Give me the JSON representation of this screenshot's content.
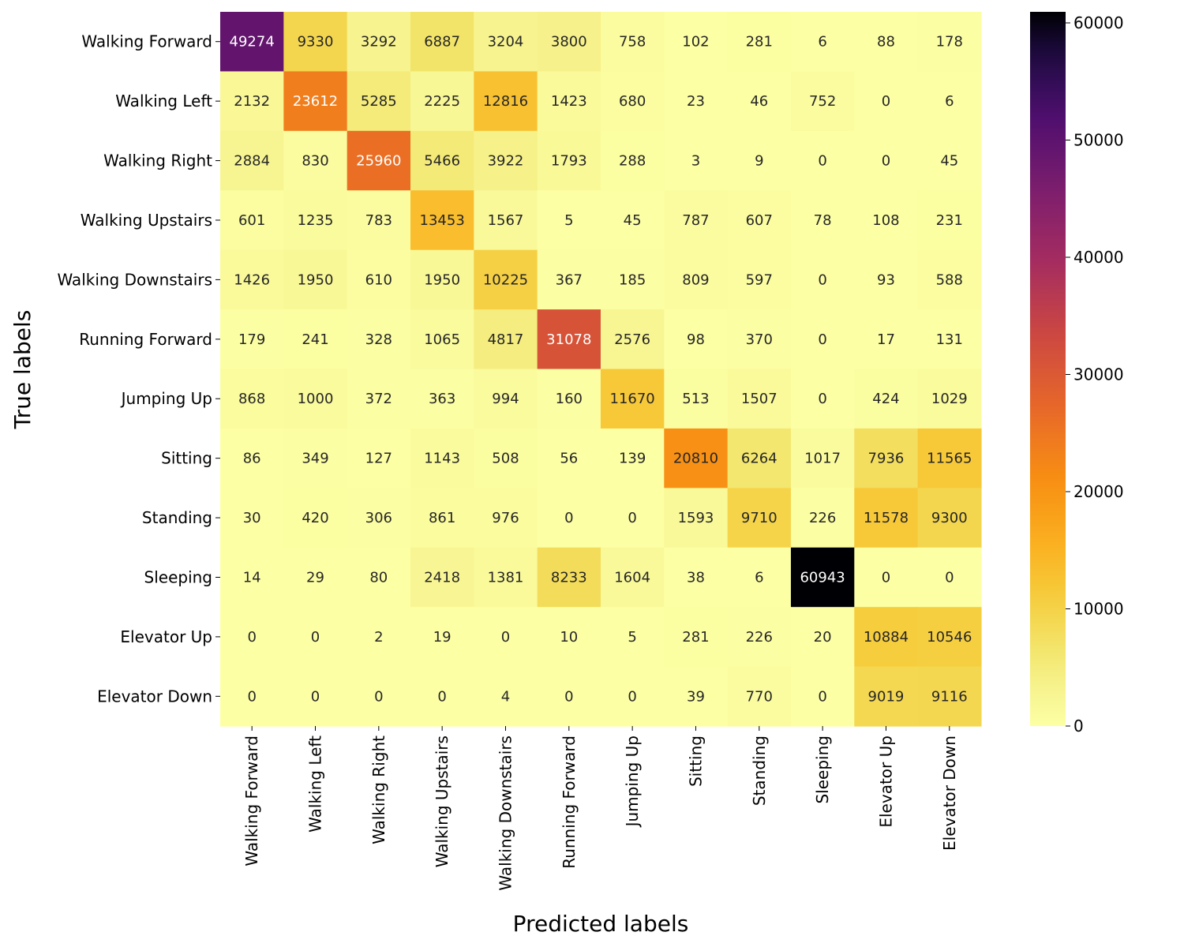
{
  "chart_data": {
    "type": "heatmap",
    "title": "",
    "xlabel": "Predicted labels",
    "ylabel": "True labels",
    "colormap": "inferno_r",
    "x_categories": [
      "Walking Forward",
      "Walking Left",
      "Walking Right",
      "Walking Upstairs",
      "Walking Downstairs",
      "Running Forward",
      "Jumping Up",
      "Sitting",
      "Standing",
      "Sleeping",
      "Elevator Up",
      "Elevator Down"
    ],
    "y_categories": [
      "Walking Forward",
      "Walking Left",
      "Walking Right",
      "Walking Upstairs",
      "Walking Downstairs",
      "Running Forward",
      "Jumping Up",
      "Sitting",
      "Standing",
      "Sleeping",
      "Elevator Up",
      "Elevator Down"
    ],
    "values": [
      [
        49274,
        9330,
        3292,
        6887,
        3204,
        3800,
        758,
        102,
        281,
        6,
        88,
        178
      ],
      [
        2132,
        23612,
        5285,
        2225,
        12816,
        1423,
        680,
        23,
        46,
        752,
        0,
        6
      ],
      [
        2884,
        830,
        25960,
        5466,
        3922,
        1793,
        288,
        3,
        9,
        0,
        0,
        45
      ],
      [
        601,
        1235,
        783,
        13453,
        1567,
        5,
        45,
        787,
        607,
        78,
        108,
        231
      ],
      [
        1426,
        1950,
        610,
        1950,
        10225,
        367,
        185,
        809,
        597,
        0,
        93,
        588
      ],
      [
        179,
        241,
        328,
        1065,
        4817,
        31078,
        2576,
        98,
        370,
        0,
        17,
        131
      ],
      [
        868,
        1000,
        372,
        363,
        994,
        160,
        11670,
        513,
        1507,
        0,
        424,
        1029
      ],
      [
        86,
        349,
        127,
        1143,
        508,
        56,
        139,
        20810,
        6264,
        1017,
        7936,
        11565
      ],
      [
        30,
        420,
        306,
        861,
        976,
        0,
        0,
        1593,
        9710,
        226,
        11578,
        9300
      ],
      [
        14,
        29,
        80,
        2418,
        1381,
        8233,
        1604,
        38,
        6,
        60943,
        0,
        0
      ],
      [
        0,
        0,
        2,
        19,
        0,
        10,
        5,
        281,
        226,
        20,
        10884,
        10546
      ],
      [
        0,
        0,
        0,
        0,
        4,
        0,
        0,
        39,
        770,
        0,
        9019,
        9116
      ]
    ],
    "colorbar": {
      "range": [
        0,
        60943
      ],
      "ticks": [
        0,
        10000,
        20000,
        30000,
        40000,
        50000,
        60000
      ]
    }
  }
}
